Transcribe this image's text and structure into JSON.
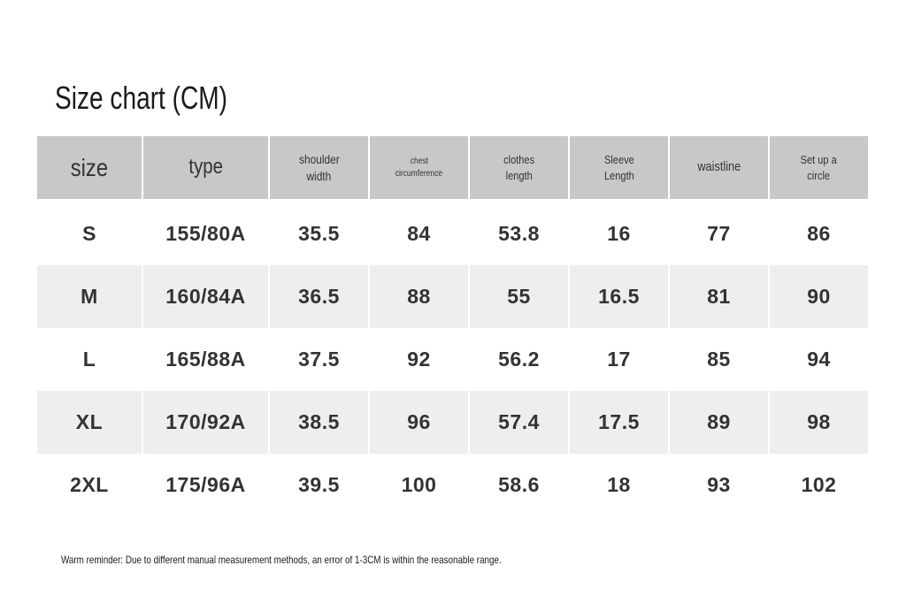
{
  "title": "Size chart (CM)",
  "table": {
    "header": [
      [
        "size"
      ],
      [
        "type"
      ],
      [
        "shoulder",
        "width"
      ],
      [
        "chest",
        "circumference"
      ],
      [
        "clothes",
        "length"
      ],
      [
        "Sleeve",
        "Length"
      ],
      [
        "waistline"
      ],
      [
        "Set up a",
        "circle"
      ]
    ],
    "rows": [
      [
        "S",
        "155/80A",
        "35.5",
        "84",
        "53.8",
        "16",
        "77",
        "86"
      ],
      [
        "M",
        "160/84A",
        "36.5",
        "88",
        "55",
        "16.5",
        "81",
        "90"
      ],
      [
        "L",
        "165/88A",
        "37.5",
        "92",
        "56.2",
        "17",
        "85",
        "94"
      ],
      [
        "XL",
        "170/92A",
        "38.5",
        "96",
        "57.4",
        "17.5",
        "89",
        "98"
      ],
      [
        "2XL",
        "175/96A",
        "39.5",
        "100",
        "58.6",
        "18",
        "93",
        "102"
      ]
    ]
  },
  "footnote": "Warm reminder: Due to different manual measurement methods, an error of 1-3CM is within the reasonable range."
}
